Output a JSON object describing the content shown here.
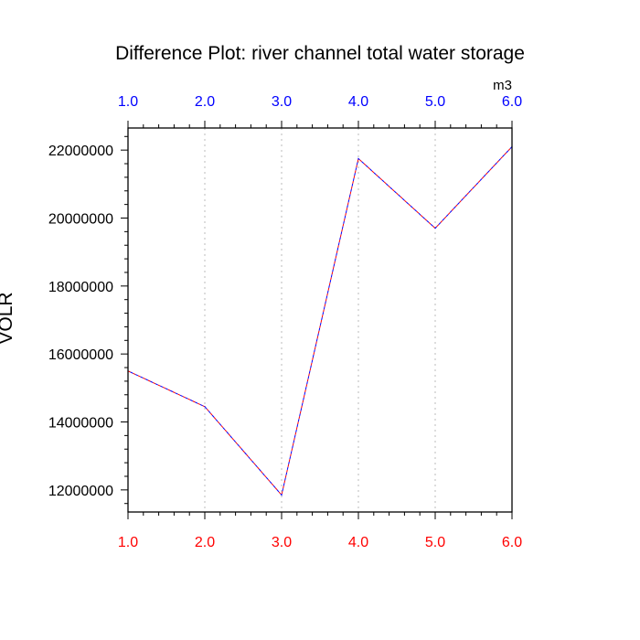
{
  "chart_data": {
    "type": "line",
    "title": "Difference Plot: river channel total water storage",
    "ylabel": "VOLR",
    "units": "m3",
    "x": [
      1.0,
      2.0,
      3.0,
      4.0,
      5.0,
      6.0
    ],
    "xtick_labels": [
      "1.0",
      "2.0",
      "3.0",
      "4.0",
      "5.0",
      "6.0"
    ],
    "xlim": [
      1.0,
      6.0
    ],
    "ytick_values": [
      12000000,
      14000000,
      16000000,
      18000000,
      20000000,
      22000000
    ],
    "ytick_labels": [
      "12000000",
      "14000000",
      "16000000",
      "18000000",
      "20000000",
      "22000000"
    ],
    "ylim": [
      11350000,
      22650000
    ],
    "series": [
      {
        "values": [
          15500000,
          14450000,
          11850000,
          21750000,
          19700000,
          22100000
        ]
      },
      {
        "values": [
          15500000,
          14450000,
          11850000,
          21750000,
          19700000,
          22100000
        ]
      }
    ],
    "grid": {
      "x": true,
      "y": false
    },
    "colors": {
      "bottom_ticks": "#ff0000",
      "top_ticks": "#0000ff",
      "series_a": "#ff0000",
      "series_b": "#0000ff",
      "grid": "#bbbbbb"
    }
  }
}
